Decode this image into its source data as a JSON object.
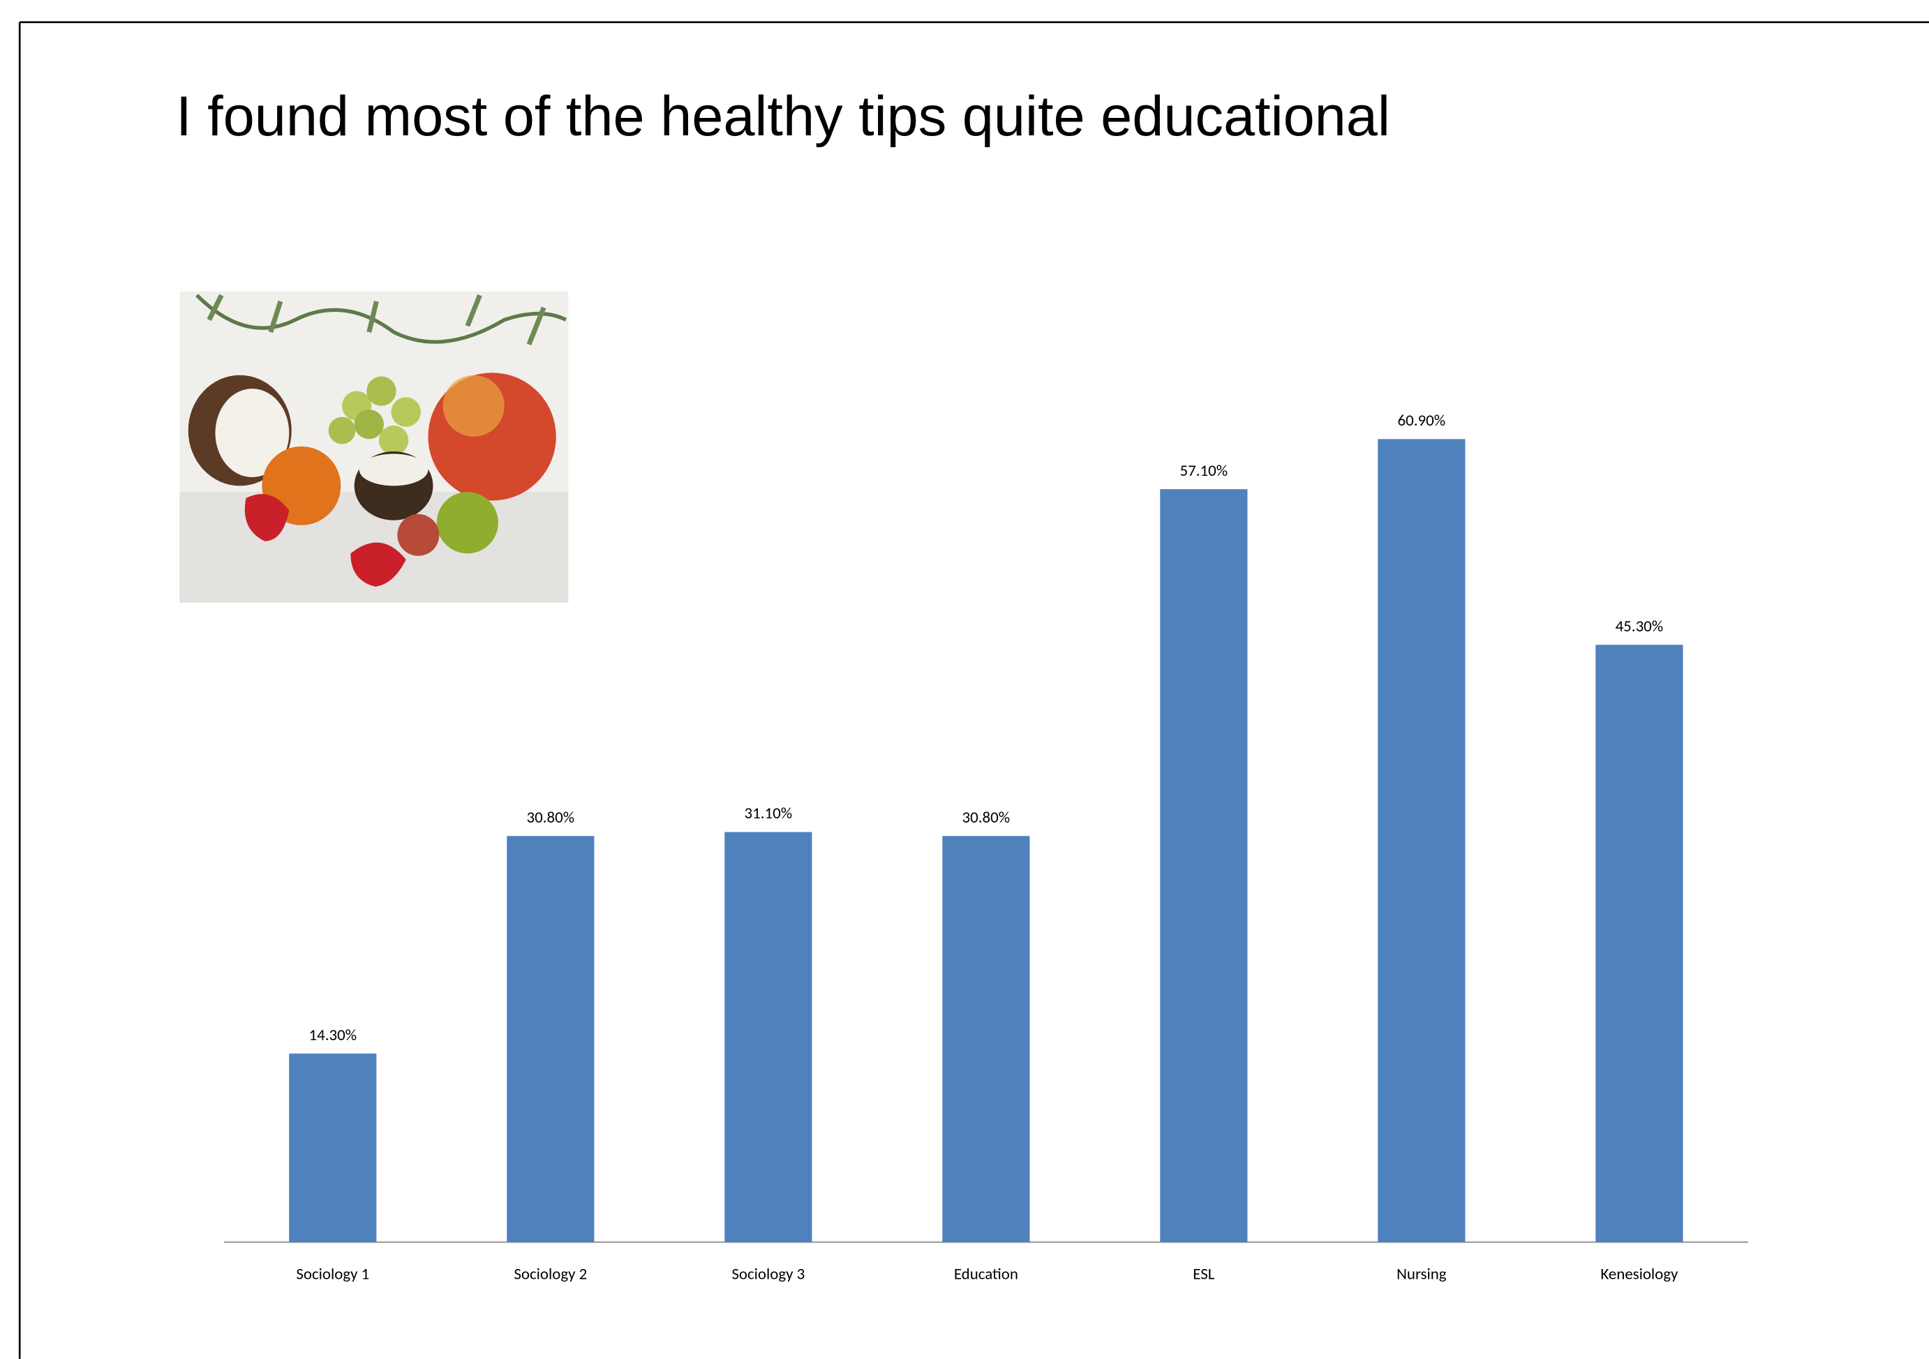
{
  "chart_data": {
    "type": "bar",
    "title": "I found most of the healthy tips quite educational",
    "categories": [
      "Sociology 1",
      "Sociology 2",
      "Sociology 3",
      "Education",
      "ESL",
      "Nursing",
      "Kenesiology"
    ],
    "values": [
      14.3,
      30.8,
      31.1,
      30.8,
      57.1,
      60.9,
      45.3
    ],
    "value_labels": [
      "14.30%",
      "30.80%",
      "31.10%",
      "30.80%",
      "57.10%",
      "60.90%",
      "45.30%"
    ],
    "color": "#4f81bd"
  }
}
